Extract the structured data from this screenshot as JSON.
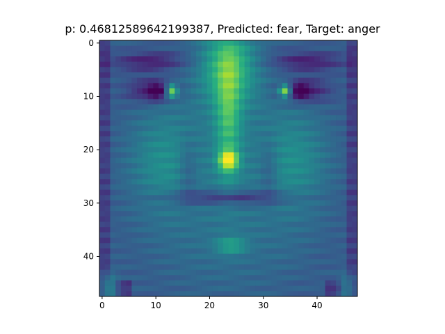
{
  "figure": {
    "title": "p: 0.46812589642199387, Predicted: fear, Target: anger"
  },
  "image": {
    "grid_size": 48,
    "colormap": "viridis",
    "subject": "grayscale face with furrowed brows"
  },
  "axes": {
    "x_ticks": [
      "0",
      "10",
      "20",
      "30",
      "40"
    ],
    "y_ticks": [
      "0",
      "10",
      "20",
      "30",
      "40"
    ]
  },
  "colors": {
    "viridis_dark": "#440154",
    "viridis_mid": "#21918c",
    "viridis_bright": "#fde725"
  }
}
